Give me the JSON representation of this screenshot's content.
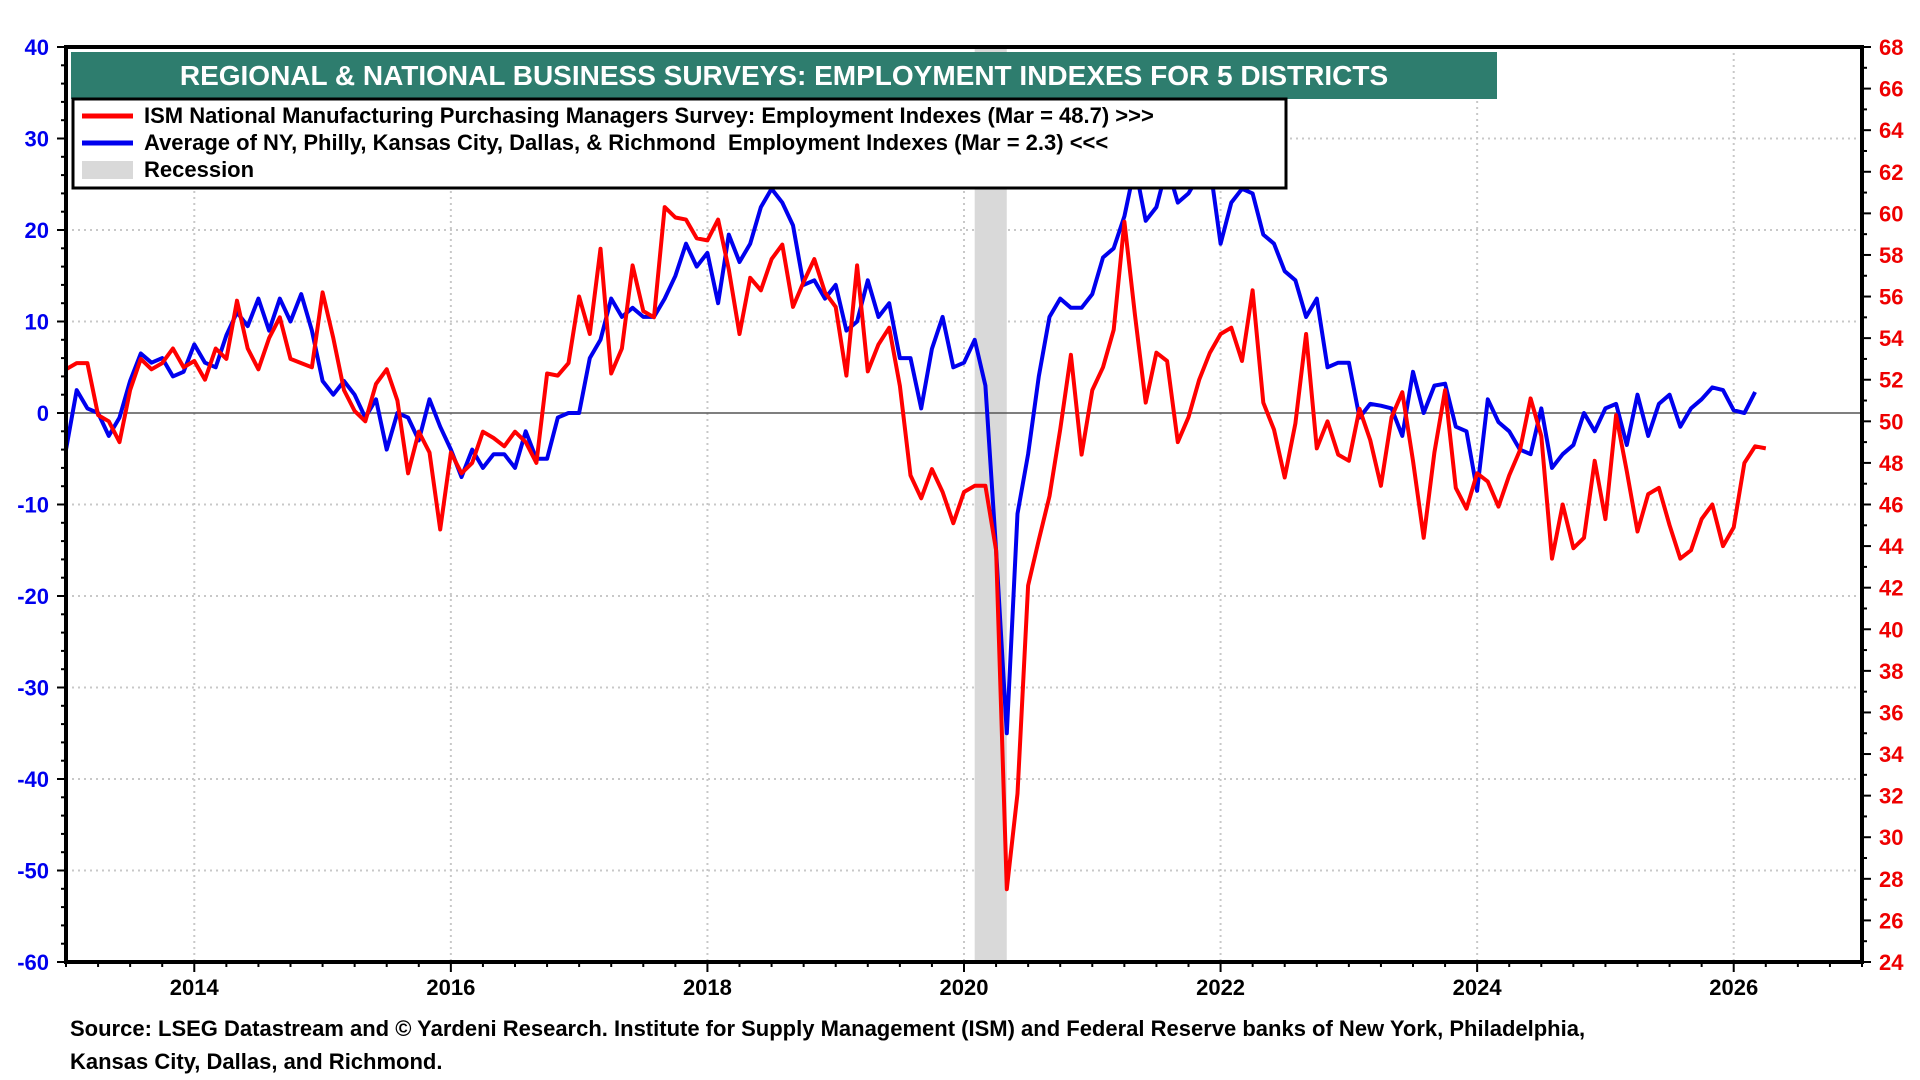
{
  "chart_data": {
    "type": "line",
    "title": "REGIONAL & NATIONAL BUSINESS SURVEYS: EMPLOYMENT INDEXES FOR 5 DISTRICTS",
    "title_bg": "#2e7d6e",
    "x_start": "2013-01",
    "frequency": "monthly",
    "xlim": [
      2013,
      2027
    ],
    "x_ticks": [
      "2014",
      "2016",
      "2018",
      "2020",
      "2022",
      "2024",
      "2026"
    ],
    "y_left": {
      "lim": [
        -60,
        40
      ],
      "ticks": [
        "40",
        "30",
        "20",
        "10",
        "0",
        "-10",
        "-20",
        "-30",
        "-40",
        "-50",
        "-60"
      ],
      "color": "#0000ee"
    },
    "y_right": {
      "lim": [
        24,
        68
      ],
      "ticks": [
        "68",
        "66",
        "64",
        "62",
        "60",
        "58",
        "56",
        "54",
        "52",
        "50",
        "48",
        "46",
        "44",
        "42",
        "40",
        "38",
        "36",
        "34",
        "32",
        "30",
        "28",
        "26",
        "24"
      ],
      "color": "#ee0000"
    },
    "grid": true,
    "legend_position": "top-left",
    "recession": {
      "label": "Recession",
      "start": "2020-02",
      "end": "2020-04",
      "color": "#d9d9d9"
    },
    "series": [
      {
        "name": "ISM National Manufacturing Purchasing Managers Survey: Employment Indexes (Mar = 48.7) >>>",
        "axis": "right",
        "color": "#ff0000",
        "values": [
          52.5,
          52.8,
          52.8,
          50.3,
          50,
          49,
          51.5,
          53,
          52.5,
          52.8,
          53.5,
          52.6,
          52.9,
          52,
          53.5,
          53,
          55.8,
          53.5,
          52.5,
          54,
          55,
          53,
          52.8,
          52.6,
          56.2,
          54,
          51.5,
          50.5,
          50,
          51.8,
          52.5,
          51,
          47.5,
          49.5,
          48.5,
          44.8,
          48.5,
          47.5,
          48,
          49.5,
          49.2,
          48.8,
          49.5,
          49,
          48,
          52.3,
          52.2,
          52.8,
          56,
          54.2,
          58.3,
          52.3,
          53.5,
          57.5,
          55.3,
          55,
          60.3,
          59.8,
          59.7,
          58.8,
          58.7,
          59.7,
          57.3,
          54.2,
          56.9,
          56.3,
          57.8,
          58.5,
          55.5,
          56.7,
          57.8,
          56.2,
          55.5,
          52.2,
          57.5,
          52.4,
          53.7,
          54.5,
          51.7,
          47.4,
          46.3,
          47.7,
          46.6,
          45.1,
          46.6,
          46.9,
          46.9,
          43.8,
          27.5,
          32.1,
          42.1,
          44.3,
          46.4,
          49.6,
          53.2,
          48.4,
          51.5,
          52.6,
          54.4,
          59.6,
          55.1,
          50.9,
          53.3,
          52.9,
          49,
          50.2,
          52,
          53.3,
          54.2,
          54.5,
          52.9,
          56.3,
          50.9,
          49.6,
          47.3,
          49.9,
          54.2,
          48.7,
          50,
          48.4,
          48.1,
          50.6,
          49.1,
          46.9,
          50.2,
          51.4,
          48.1,
          44.4,
          48.5,
          51.5,
          46.8,
          45.8,
          47.5,
          47.1,
          45.9,
          47.4,
          48.6,
          51.1,
          49.3,
          43.4,
          46,
          43.9,
          44.4,
          48.1,
          45.3,
          50.3,
          47.6,
          44.7,
          46.5,
          46.8,
          45,
          43.4,
          43.8,
          45.3,
          46,
          44,
          44.9,
          48,
          48.8,
          48.7
        ]
      },
      {
        "name": "Average of NY, Philly, Kansas City, Dallas, & Richmond  Employment Indexes (Mar = 2.3) <<<",
        "axis": "left",
        "color": "#0000ee",
        "values": [
          -4,
          2.5,
          0.5,
          0,
          -2.5,
          -0.5,
          3.5,
          6.5,
          5.5,
          6,
          4,
          4.5,
          7.5,
          5.5,
          5,
          8.5,
          11,
          9.5,
          12.5,
          9,
          12.5,
          10,
          13,
          9,
          3.5,
          2,
          3.5,
          2,
          -0.5,
          1.5,
          -4,
          0,
          -0.5,
          -3,
          1.5,
          -1.5,
          -4,
          -7,
          -4,
          -6,
          -4.5,
          -4.5,
          -6,
          -2,
          -5,
          -5,
          -0.5,
          0,
          0,
          6,
          8,
          12.5,
          10.5,
          11.5,
          10.5,
          10.5,
          12.5,
          15,
          18.5,
          16,
          17.5,
          12,
          19.5,
          16.5,
          18.5,
          22.5,
          24.5,
          23,
          20.5,
          14,
          14.5,
          12.5,
          14,
          9,
          10,
          14.5,
          10.5,
          12,
          6,
          6,
          0.5,
          7,
          10.5,
          5,
          5.5,
          8,
          3,
          -15,
          -35,
          -11,
          -4.5,
          4,
          10.5,
          12.5,
          11.5,
          11.5,
          13,
          17,
          18,
          21.5,
          27,
          21,
          22.5,
          27,
          23,
          24,
          26,
          27,
          18.5,
          23,
          24.5,
          24,
          19.5,
          18.5,
          15.5,
          14.5,
          10.5,
          12.5,
          5,
          5.5,
          5.5,
          -0.5,
          1,
          0.8,
          0.5,
          -2.5,
          4.5,
          0,
          3,
          3.2,
          -1.5,
          -2,
          -8.5,
          1.5,
          -1,
          -2,
          -4,
          -4.5,
          0.5,
          -6,
          -4.5,
          -3.5,
          0,
          -2,
          0.5,
          1,
          -3.5,
          2,
          -2.5,
          1,
          2,
          -1.5,
          0.5,
          1.5,
          2.8,
          2.5,
          0.3,
          0,
          2.3
        ]
      }
    ]
  },
  "footer": {
    "source_line1": "Source: LSEG Datastream and © Yardeni Research. Institute for Supply Management (ISM) and Federal Reserve banks of New York, Philadelphia,",
    "source_line2": "Kansas City, Dallas, and Richmond."
  }
}
